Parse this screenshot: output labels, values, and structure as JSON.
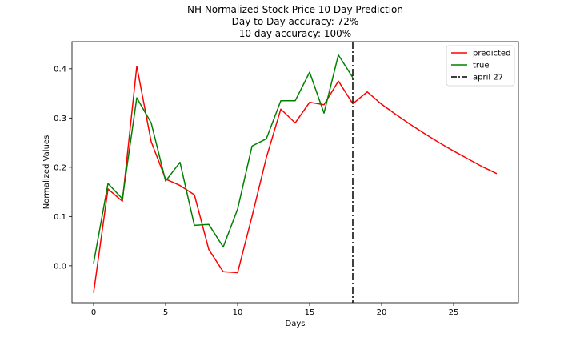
{
  "chart_data": {
    "type": "line",
    "title_lines": [
      "NH Normalized Stock Price 10 Day Prediction",
      "Day to Day accuracy: 72%",
      "10 day accuracy: 100%"
    ],
    "xlabel": "Days",
    "ylabel": "Normalized Values",
    "xlim": [
      -1.5,
      29.5
    ],
    "ylim": [
      -0.075,
      0.455
    ],
    "xticks": [
      0,
      5,
      10,
      15,
      20,
      25
    ],
    "yticks": [
      0.0,
      0.1,
      0.2,
      0.3,
      0.4
    ],
    "ytick_labels": [
      "0.0",
      "0.1",
      "0.2",
      "0.3",
      "0.4"
    ],
    "legend_position": "top-right",
    "series": [
      {
        "name": "predicted",
        "color": "#ff0000",
        "style": "solid",
        "x": [
          0,
          1,
          2,
          3,
          4,
          5,
          6,
          7,
          8,
          9,
          10,
          11,
          12,
          13,
          14,
          15,
          16,
          17,
          18,
          19,
          20,
          21,
          22,
          23,
          24,
          25,
          26,
          27,
          28
        ],
        "y": [
          -0.055,
          0.156,
          0.131,
          0.405,
          0.252,
          0.176,
          0.163,
          0.144,
          0.033,
          -0.012,
          -0.014,
          0.1,
          0.22,
          0.318,
          0.29,
          0.332,
          0.327,
          0.375,
          0.329,
          0.353,
          0.328,
          0.307,
          0.287,
          0.268,
          0.25,
          0.233,
          0.217,
          0.201,
          0.187
        ]
      },
      {
        "name": "true",
        "color": "#008000",
        "style": "solid",
        "x": [
          0,
          1,
          2,
          3,
          4,
          5,
          6,
          7,
          8,
          9,
          10,
          11,
          12,
          13,
          14,
          15,
          16,
          17,
          18
        ],
        "y": [
          0.005,
          0.167,
          0.136,
          0.341,
          0.29,
          0.172,
          0.21,
          0.082,
          0.084,
          0.038,
          0.115,
          0.243,
          0.258,
          0.335,
          0.335,
          0.393,
          0.31,
          0.428,
          0.382
        ]
      }
    ],
    "vline": {
      "name": "april 27",
      "x": 18,
      "color": "#000000",
      "style": "dashdot"
    }
  }
}
